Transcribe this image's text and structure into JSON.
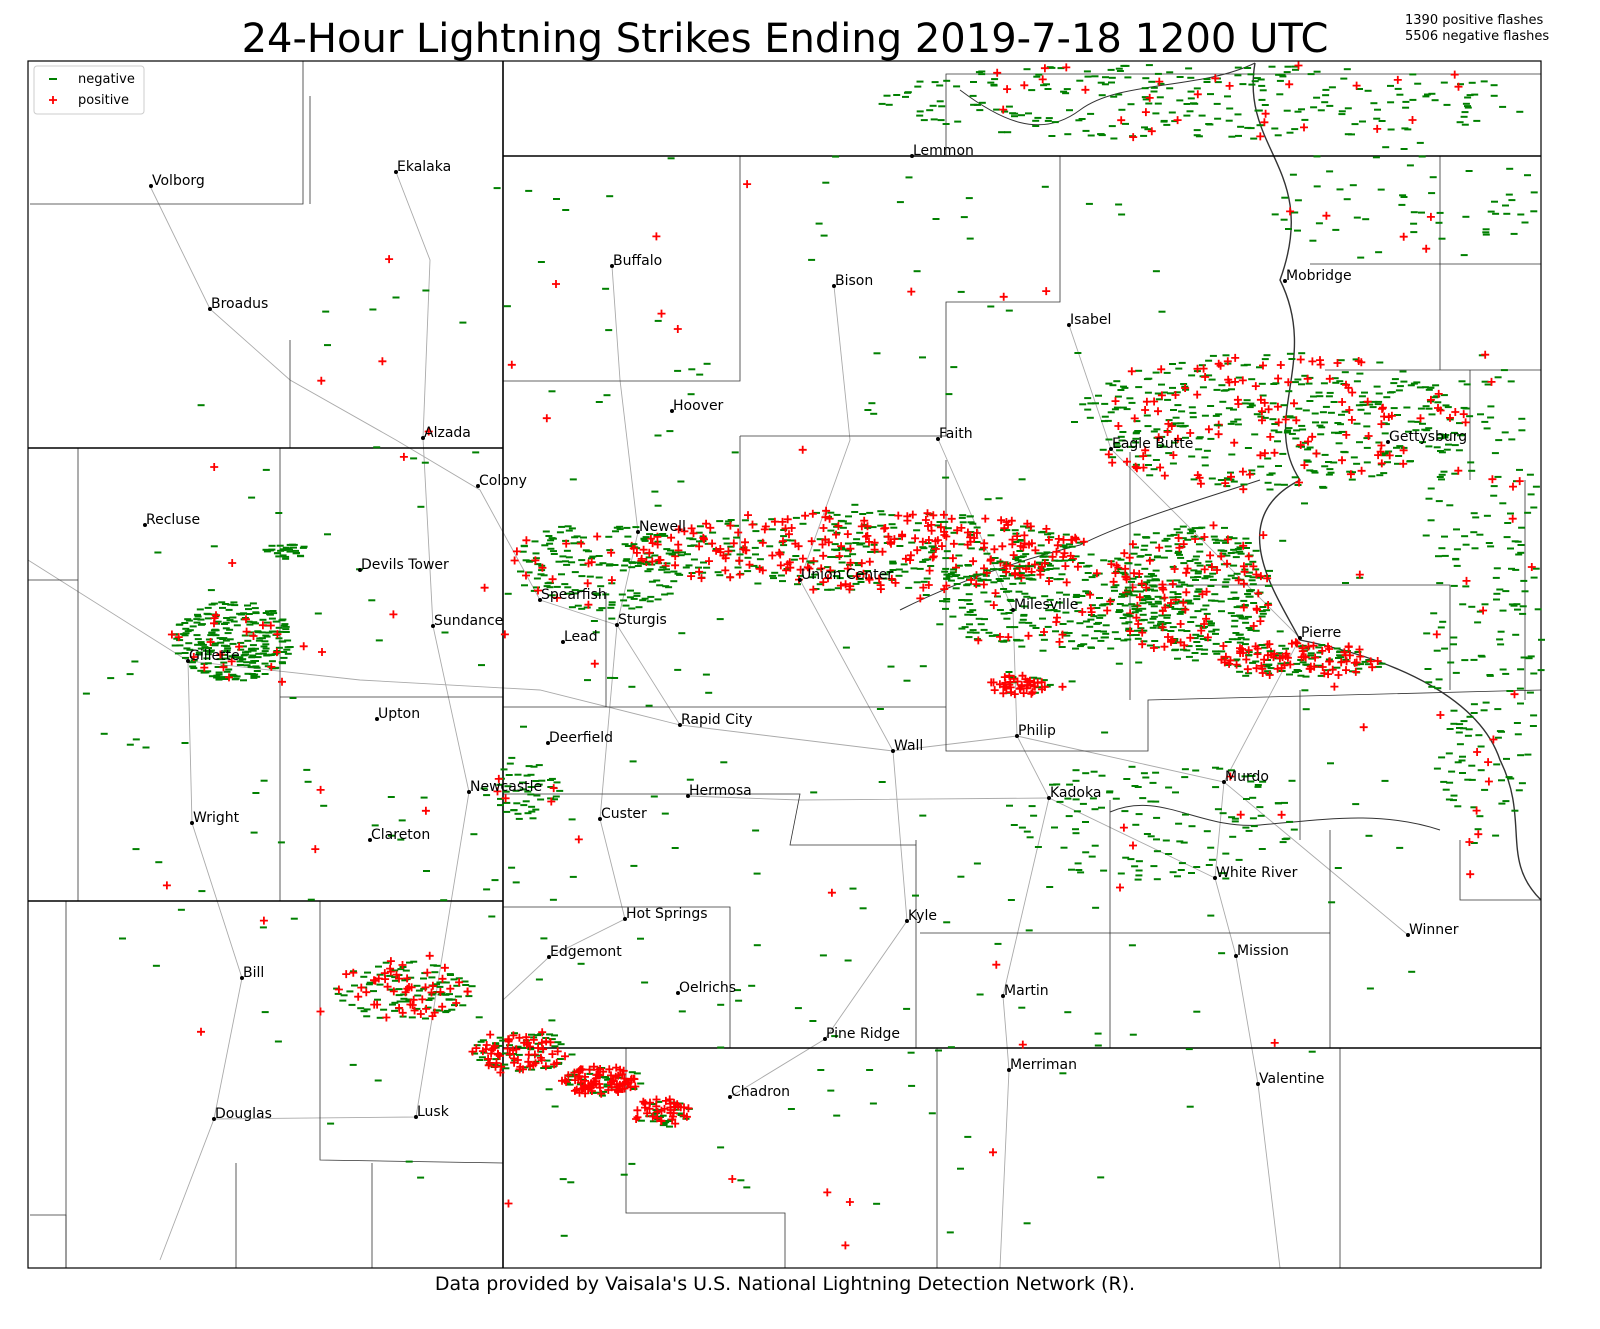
{
  "header": {
    "title": "24-Hour Lightning Strikes Ending 2019-7-18 1200 UTC",
    "stats": [
      "1390 positive flashes",
      "5506 negative flashes"
    ]
  },
  "legend": [
    "negative",
    "positive"
  ],
  "cities": [
    "Volborg",
    "Ekalaka",
    "Lemmon",
    "Buffalo",
    "Bison",
    "Broadus",
    "Mobridge",
    "Isabel",
    "Alzada",
    "Hoover",
    "Faith",
    "Eagle Butte",
    "Gettysburg",
    "Colony",
    "Recluse",
    "Newell",
    "Devils Tower",
    "Union Center",
    "Spearfish",
    "Milesville",
    "Sundance",
    "Sturgis",
    "Lead",
    "Pierre",
    "Gillette",
    "Upton",
    "Rapid City",
    "Philip",
    "Deerfield",
    "Wall",
    "Murdo",
    "Newcastle",
    "Hermosa",
    "Kadoka",
    "Custer",
    "Wright",
    "Clareton",
    "White River",
    "Hot Springs",
    "Kyle",
    "Winner",
    "Mission",
    "Edgemont",
    "Bill",
    "Oelrichs",
    "Martin",
    "Pine Ridge",
    "Merriman",
    "Valentine",
    "Chadron",
    "Douglas",
    "Lusk"
  ],
  "footer": "Data provided by Vaisala's U.S. National Lightning Detection Network (R)."
}
